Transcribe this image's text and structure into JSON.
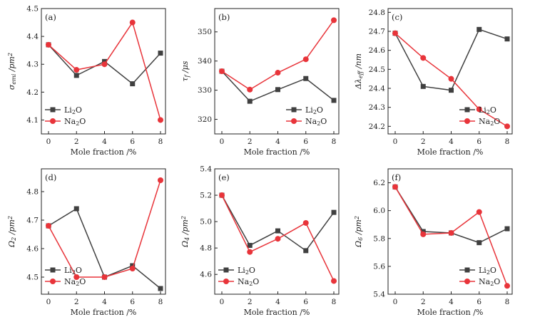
{
  "chart_data": [
    {
      "type": "line",
      "panel_label": "(a)",
      "xlabel": "Mole fraction /%",
      "ylabel": "σ_emi /pm²",
      "x": [
        0,
        2,
        4,
        6,
        8
      ],
      "x_ticks": [
        "0",
        "2",
        "4",
        "6",
        "8"
      ],
      "ylim": [
        4.05,
        4.5
      ],
      "y_ticks": [
        4.1,
        4.2,
        4.3,
        4.4,
        4.5
      ],
      "y_tick_labels": [
        "4.1",
        "4.2",
        "4.3",
        "4.4",
        "4.5"
      ],
      "legend_position": "bottom-left",
      "series": [
        {
          "name": "Li₂O",
          "color": "#404040",
          "marker": "square",
          "values": [
            4.37,
            4.26,
            4.31,
            4.23,
            4.34
          ]
        },
        {
          "name": "Na₂O",
          "color": "#e8343a",
          "marker": "circle",
          "values": [
            4.37,
            4.28,
            4.3,
            4.45,
            4.1
          ]
        }
      ]
    },
    {
      "type": "line",
      "panel_label": "(b)",
      "xlabel": "Mole fraction /%",
      "ylabel": "τ_f /μs",
      "x": [
        0,
        2,
        4,
        6,
        8
      ],
      "x_ticks": [
        "0",
        "2",
        "4",
        "6",
        "8"
      ],
      "ylim": [
        315,
        358
      ],
      "y_ticks": [
        320,
        330,
        340,
        350
      ],
      "y_tick_labels": [
        "320",
        "330",
        "340",
        "350"
      ],
      "legend_position": "bottom-right",
      "series": [
        {
          "name": "Li₂O",
          "color": "#404040",
          "marker": "square",
          "values": [
            336.5,
            326.2,
            330.2,
            334.0,
            326.5
          ]
        },
        {
          "name": "Na₂O",
          "color": "#e8343a",
          "marker": "circle",
          "values": [
            336.5,
            330.2,
            336.0,
            340.6,
            354.0
          ]
        }
      ]
    },
    {
      "type": "line",
      "panel_label": "(c)",
      "xlabel": "Mole fraction /%",
      "ylabel": "Δλ_eff /nm",
      "x": [
        0,
        2,
        4,
        6,
        8
      ],
      "x_ticks": [
        "0",
        "2",
        "4",
        "6",
        "8"
      ],
      "ylim": [
        24.16,
        24.82
      ],
      "y_ticks": [
        24.2,
        24.3,
        24.4,
        24.5,
        24.6,
        24.7,
        24.8
      ],
      "y_tick_labels": [
        "24.2",
        "24.3",
        "24.4",
        "24.5",
        "24.6",
        "24.7",
        "24.8"
      ],
      "legend_position": "bottom-right",
      "series": [
        {
          "name": "Li₂O",
          "color": "#404040",
          "marker": "square",
          "values": [
            24.69,
            24.41,
            24.39,
            24.71,
            24.66
          ]
        },
        {
          "name": "Na₂O",
          "color": "#e8343a",
          "marker": "circle",
          "values": [
            24.69,
            24.56,
            24.45,
            24.29,
            24.2
          ]
        }
      ]
    },
    {
      "type": "line",
      "panel_label": "(d)",
      "xlabel": "Mole fraction /%",
      "ylabel": "Ω₂ /pm²",
      "x": [
        0,
        2,
        4,
        6,
        8
      ],
      "x_ticks": [
        "0",
        "2",
        "4",
        "6",
        "8"
      ],
      "ylim": [
        4.44,
        4.88
      ],
      "y_ticks": [
        4.5,
        4.6,
        4.7,
        4.8
      ],
      "y_tick_labels": [
        "4.5",
        "4.6",
        "4.7",
        "4.8"
      ],
      "legend_position": "bottom-left",
      "series": [
        {
          "name": "Li₂O",
          "color": "#404040",
          "marker": "square",
          "values": [
            4.68,
            4.74,
            4.5,
            4.54,
            4.46
          ]
        },
        {
          "name": "Na₂O",
          "color": "#e8343a",
          "marker": "circle",
          "values": [
            4.68,
            4.5,
            4.5,
            4.53,
            4.84
          ]
        }
      ]
    },
    {
      "type": "line",
      "panel_label": "(e)",
      "xlabel": "Mole fraction /%",
      "ylabel": "Ω₄ /pm²",
      "x": [
        0,
        2,
        4,
        6,
        8
      ],
      "x_ticks": [
        "0",
        "2",
        "4",
        "6",
        "8"
      ],
      "ylim": [
        4.45,
        5.4
      ],
      "y_ticks": [
        4.6,
        4.8,
        5.0,
        5.2,
        5.4
      ],
      "y_tick_labels": [
        "4.6",
        "4.8",
        "5.0",
        "5.2",
        "5.4"
      ],
      "legend_position": "bottom-left",
      "series": [
        {
          "name": "Li₂O",
          "color": "#404040",
          "marker": "square",
          "values": [
            5.2,
            4.82,
            4.93,
            4.78,
            5.07
          ]
        },
        {
          "name": "Na₂O",
          "color": "#e8343a",
          "marker": "circle",
          "values": [
            5.2,
            4.77,
            4.87,
            4.99,
            4.55
          ]
        }
      ]
    },
    {
      "type": "line",
      "panel_label": "(f)",
      "xlabel": "Mole fraction /%",
      "ylabel": "Ω₆ /pm²",
      "x": [
        0,
        2,
        4,
        6,
        8
      ],
      "x_ticks": [
        "0",
        "2",
        "4",
        "6",
        "8"
      ],
      "ylim": [
        5.4,
        6.3
      ],
      "y_ticks": [
        5.4,
        5.6,
        5.8,
        6.0,
        6.2
      ],
      "y_tick_labels": [
        "5.4",
        "5.6",
        "5.8",
        "6.0",
        "6.2"
      ],
      "legend_position": "bottom-right",
      "series": [
        {
          "name": "Li₂O",
          "color": "#404040",
          "marker": "square",
          "values": [
            6.17,
            5.85,
            5.84,
            5.77,
            5.87
          ]
        },
        {
          "name": "Na₂O",
          "color": "#e8343a",
          "marker": "circle",
          "values": [
            6.17,
            5.83,
            5.84,
            5.99,
            5.46
          ]
        }
      ]
    }
  ]
}
